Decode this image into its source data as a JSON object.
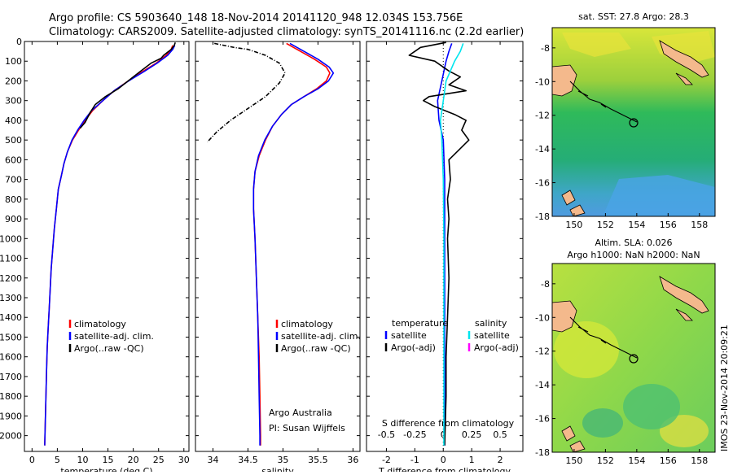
{
  "header": {
    "line1": "Argo profile: CS 5903640_148 18-Nov-2014 20141120_948 12.034S 153.756E",
    "line2": "Climatology: CARS2009. Satellite-adjusted climatology: synTS_20141116.nc (2.2d earlier)"
  },
  "side_stamp": "IMOS 23-Nov-2014 20:09:21",
  "colors": {
    "climatology": "#ff0000",
    "satellite": "#0000ff",
    "argo": "#000000",
    "salinity_sat": "#00e5ee",
    "salinity_argo": "#ff00ff",
    "land": "#f4b98c"
  },
  "chart_data": [
    {
      "id": "temperature",
      "type": "line",
      "xlabel": "temperature (deg C)",
      "xlim": [
        -1.5,
        31
      ],
      "xticks": [
        0,
        5,
        10,
        15,
        20,
        25,
        30
      ],
      "ylim": [
        2080,
        0
      ],
      "yticks": [
        0,
        100,
        200,
        300,
        400,
        500,
        600,
        700,
        800,
        900,
        1000,
        1100,
        1200,
        1300,
        1400,
        1500,
        1600,
        1700,
        1800,
        1900,
        2000
      ],
      "legend": [
        "climatology",
        "satellite-adj. clim.",
        "Argo(..raw -QC)"
      ],
      "series": [
        {
          "name": "climatology",
          "color": "#ff0000",
          "points": [
            [
              27.8,
              20
            ],
            [
              27.5,
              40
            ],
            [
              26.5,
              70
            ],
            [
              24.5,
              110
            ],
            [
              22,
              150
            ],
            [
              19,
              200
            ],
            [
              16.2,
              250
            ],
            [
              14,
              300
            ],
            [
              12,
              350
            ],
            [
              10.5,
              400
            ],
            [
              9.2,
              450
            ],
            [
              8,
              500
            ],
            [
              7,
              560
            ],
            [
              6.3,
              620
            ],
            [
              5.8,
              680
            ],
            [
              5.2,
              750
            ],
            [
              4.8,
              850
            ],
            [
              4.4,
              950
            ],
            [
              4.1,
              1050
            ],
            [
              3.8,
              1150
            ],
            [
              3.6,
              1250
            ],
            [
              3.4,
              1350
            ],
            [
              3.2,
              1450
            ],
            [
              3,
              1550
            ],
            [
              2.9,
              1650
            ],
            [
              2.8,
              1750
            ],
            [
              2.7,
              1850
            ],
            [
              2.6,
              1950
            ],
            [
              2.5,
              2050
            ]
          ]
        },
        {
          "name": "satellite-adj. clim.",
          "color": "#0000ff",
          "points": [
            [
              28.2,
              20
            ],
            [
              27.8,
              40
            ],
            [
              26.8,
              70
            ],
            [
              24.7,
              110
            ],
            [
              22.3,
              150
            ],
            [
              19.1,
              200
            ],
            [
              16.2,
              250
            ],
            [
              14,
              300
            ],
            [
              11.8,
              350
            ],
            [
              10.3,
              400
            ],
            [
              9,
              450
            ],
            [
              7.9,
              500
            ],
            [
              7,
              560
            ],
            [
              6.3,
              620
            ],
            [
              5.8,
              680
            ],
            [
              5.2,
              750
            ],
            [
              4.8,
              850
            ],
            [
              4.4,
              950
            ],
            [
              4.1,
              1050
            ],
            [
              3.8,
              1150
            ],
            [
              3.6,
              1250
            ],
            [
              3.4,
              1350
            ],
            [
              3.2,
              1450
            ],
            [
              3,
              1550
            ],
            [
              2.9,
              1650
            ],
            [
              2.8,
              1750
            ],
            [
              2.7,
              1850
            ],
            [
              2.6,
              1950
            ],
            [
              2.5,
              2050
            ]
          ]
        },
        {
          "name": "Argo(..raw -QC)",
          "color": "#000000",
          "points": [
            [
              28.3,
              5
            ],
            [
              28.1,
              20
            ],
            [
              27.5,
              40
            ],
            [
              26,
              70
            ],
            [
              25.5,
              85
            ],
            [
              23.5,
              110
            ],
            [
              21.5,
              150
            ],
            [
              19.5,
              190
            ],
            [
              17,
              240
            ],
            [
              14.5,
              280
            ],
            [
              12.5,
              320
            ],
            [
              11.5,
              360
            ],
            [
              10.5,
              410
            ],
            [
              9.5,
              440
            ]
          ]
        }
      ]
    },
    {
      "id": "salinity",
      "type": "line",
      "xlabel": "salinity",
      "xlim": [
        33.75,
        36.1
      ],
      "xticks": [
        34,
        34.5,
        35,
        35.5,
        36
      ],
      "ylim": [
        2080,
        0
      ],
      "legend": [
        "climatology",
        "satellite-adj. clim.",
        "Argo(..raw -QC)"
      ],
      "annotation": [
        "Argo Australia",
        "PI: Susan Wijffels"
      ],
      "series": [
        {
          "name": "climatology",
          "color": "#ff0000",
          "points": [
            [
              35.05,
              10
            ],
            [
              35.2,
              40
            ],
            [
              35.45,
              90
            ],
            [
              35.62,
              130
            ],
            [
              35.67,
              160
            ],
            [
              35.62,
              200
            ],
            [
              35.48,
              240
            ],
            [
              35.3,
              280
            ],
            [
              35.12,
              320
            ],
            [
              34.98,
              370
            ],
            [
              34.85,
              430
            ],
            [
              34.75,
              500
            ],
            [
              34.66,
              580
            ],
            [
              34.6,
              660
            ],
            [
              34.58,
              750
            ],
            [
              34.58,
              850
            ],
            [
              34.6,
              1000
            ],
            [
              34.62,
              1200
            ],
            [
              34.64,
              1400
            ],
            [
              34.66,
              1600
            ],
            [
              34.67,
              1800
            ],
            [
              34.68,
              2000
            ],
            [
              34.68,
              2050
            ]
          ]
        },
        {
          "name": "satellite-adj. clim.",
          "color": "#0000ff",
          "points": [
            [
              35.1,
              10
            ],
            [
              35.25,
              40
            ],
            [
              35.5,
              90
            ],
            [
              35.66,
              130
            ],
            [
              35.72,
              160
            ],
            [
              35.65,
              200
            ],
            [
              35.5,
              240
            ],
            [
              35.3,
              280
            ],
            [
              35.12,
              320
            ],
            [
              34.98,
              370
            ],
            [
              34.85,
              430
            ],
            [
              34.74,
              500
            ],
            [
              34.65,
              580
            ],
            [
              34.6,
              660
            ],
            [
              34.58,
              750
            ],
            [
              34.58,
              850
            ],
            [
              34.6,
              1000
            ],
            [
              34.62,
              1200
            ],
            [
              34.64,
              1400
            ],
            [
              34.65,
              1600
            ],
            [
              34.66,
              1800
            ],
            [
              34.67,
              2000
            ],
            [
              34.67,
              2050
            ]
          ]
        },
        {
          "name": "Argo(..raw -QC)",
          "color": "#000000",
          "dashed": true,
          "points": [
            [
              34.02,
              10
            ],
            [
              34.3,
              30
            ],
            [
              34.5,
              40
            ],
            [
              34.75,
              70
            ],
            [
              34.95,
              110
            ],
            [
              35.03,
              160
            ],
            [
              34.95,
              210
            ],
            [
              34.75,
              280
            ],
            [
              34.5,
              340
            ],
            [
              34.25,
              400
            ],
            [
              34.05,
              460
            ],
            [
              33.92,
              510
            ]
          ]
        }
      ]
    },
    {
      "id": "difference",
      "type": "line",
      "xlabel": "T difference from climatology",
      "xlabel_top": "S difference from climatology",
      "xlim": [
        -2.7,
        2.8
      ],
      "xticks": [
        -2,
        -1,
        0,
        1,
        2
      ],
      "xticks_top": [
        "-0.5",
        "-0.25",
        "0",
        "0.25",
        "0.5"
      ],
      "ylim": [
        2080,
        0
      ],
      "legend_left_title": "temperature",
      "legend_right_title": "salinity",
      "legend_left": [
        "satellite",
        "Argo(-adj)"
      ],
      "legend_right": [
        "satellite",
        "Argo(-adj)"
      ],
      "series": [
        {
          "name": "T satellite",
          "color": "#0000ff",
          "points": [
            [
              0.3,
              10
            ],
            [
              0.2,
              50
            ],
            [
              0.1,
              100
            ],
            [
              -0.05,
              200
            ],
            [
              -0.2,
              300
            ],
            [
              -0.15,
              400
            ],
            [
              0,
              500
            ],
            [
              0.05,
              700
            ],
            [
              0.05,
              1000
            ],
            [
              0.05,
              1500
            ],
            [
              0.05,
              2050
            ]
          ]
        },
        {
          "name": "T Argo(-adj)",
          "color": "#000000",
          "points": [
            [
              0.1,
              5
            ],
            [
              -0.8,
              30
            ],
            [
              -1.2,
              70
            ],
            [
              -0.3,
              100
            ],
            [
              0.2,
              150
            ],
            [
              0.6,
              180
            ],
            [
              0.2,
              220
            ],
            [
              0.8,
              250
            ],
            [
              -0.5,
              280
            ],
            [
              -0.7,
              300
            ],
            [
              -0.3,
              330
            ],
            [
              0.4,
              370
            ],
            [
              0.8,
              400
            ],
            [
              0.65,
              450
            ],
            [
              0.9,
              500
            ],
            [
              0.55,
              550
            ],
            [
              0.2,
              600
            ],
            [
              0.25,
              700
            ],
            [
              0.15,
              800
            ],
            [
              0.2,
              900
            ],
            [
              0.15,
              1000
            ],
            [
              0.2,
              1200
            ],
            [
              0.15,
              1400
            ],
            [
              0.1,
              1600
            ],
            [
              0.1,
              1800
            ],
            [
              0.05,
              2050
            ]
          ]
        },
        {
          "name": "S satellite",
          "color": "#00e5ee",
          "points": [
            [
              0.7,
              10
            ],
            [
              0.6,
              50
            ],
            [
              0.4,
              100
            ],
            [
              0.1,
              200
            ],
            [
              0,
              300
            ],
            [
              -0.1,
              400
            ],
            [
              -0.05,
              500
            ],
            [
              0,
              700
            ],
            [
              0.02,
              1000
            ],
            [
              0.02,
              1500
            ],
            [
              0.02,
              2050
            ]
          ]
        }
      ]
    }
  ],
  "maps": [
    {
      "id": "sst",
      "title": "sat. SST: 27.8 Argo: 28.3",
      "xticks": [
        150,
        152,
        154,
        156,
        158
      ],
      "yticks": [
        -8,
        -10,
        -12,
        -14,
        -16,
        -18
      ],
      "xlim": [
        148.6,
        159
      ],
      "ylim": [
        -18,
        -6.8
      ],
      "argo_position": [
        153.9,
        -12
      ]
    },
    {
      "id": "sla",
      "title_line1": "Altim. SLA: 0.026",
      "title_line2": "Argo h1000: NaN h2000: NaN",
      "xticks": [
        150,
        152,
        154,
        156,
        158
      ],
      "yticks": [
        -8,
        -10,
        -12,
        -14,
        -16,
        -18
      ],
      "xlim": [
        148.6,
        159
      ],
      "ylim": [
        -18,
        -6.8
      ],
      "argo_position": [
        153.9,
        -12
      ]
    }
  ]
}
